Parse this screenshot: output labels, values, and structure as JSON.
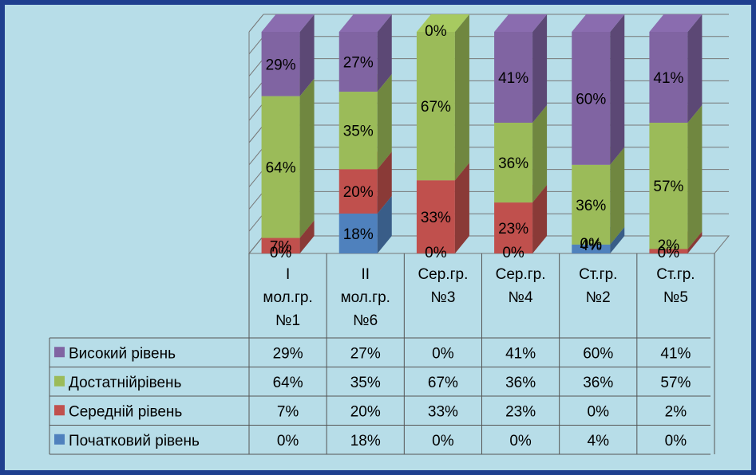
{
  "chart_data": {
    "type": "bar",
    "stacked": true,
    "three_d": true,
    "ylim": [
      0,
      100
    ],
    "grid": true,
    "categories": [
      "I мол.гр. №1",
      "II мол.гр. №6",
      "Сер.гр. №3",
      "Сер.гр. №4",
      "Ст.гр. №2",
      "Ст.гр. №5"
    ],
    "category_lines": [
      [
        "I",
        "мол.гр.",
        "№1"
      ],
      [
        "II",
        "мол.гр.",
        "№6"
      ],
      [
        "Сер.гр.",
        "№3"
      ],
      [
        "Сер.гр.",
        "№4"
      ],
      [
        "Ст.гр.",
        "№2"
      ],
      [
        "Ст.гр.",
        "№5"
      ]
    ],
    "series": [
      {
        "name": "Високий рівень",
        "color": "#8064a2",
        "values": [
          29,
          27,
          0,
          41,
          60,
          41
        ]
      },
      {
        "name": "Достатнійрівень",
        "color": "#9bbb59",
        "values": [
          64,
          35,
          67,
          36,
          36,
          57
        ]
      },
      {
        "name": "Середній  рівень",
        "color": "#c0504d",
        "values": [
          7,
          20,
          33,
          23,
          0,
          2
        ]
      },
      {
        "name": "Початковий рівень",
        "color": "#4f81bd",
        "values": [
          0,
          18,
          0,
          0,
          4,
          0
        ]
      }
    ],
    "data_table": {
      "rows": [
        [
          "29%",
          "27%",
          "0%",
          "41%",
          "60%",
          "41%"
        ],
        [
          "64%",
          "35%",
          "67%",
          "36%",
          "36%",
          "57%"
        ],
        [
          "7%",
          "20%",
          "33%",
          "23%",
          "0%",
          "2%"
        ],
        [
          "0%",
          "18%",
          "0%",
          "0%",
          "4%",
          "0%"
        ]
      ]
    },
    "bar_labels": [
      [
        "29%",
        "27%",
        "0%",
        "41%",
        "60%",
        "41%"
      ],
      [
        "64%",
        "35%",
        "67%",
        "36%",
        "36%",
        "57%"
      ],
      [
        "7%",
        "20%",
        "33%",
        "23%",
        "0%",
        "2%"
      ],
      [
        "0%",
        "18%",
        "0%",
        "0%",
        "4%",
        "0%"
      ]
    ]
  }
}
